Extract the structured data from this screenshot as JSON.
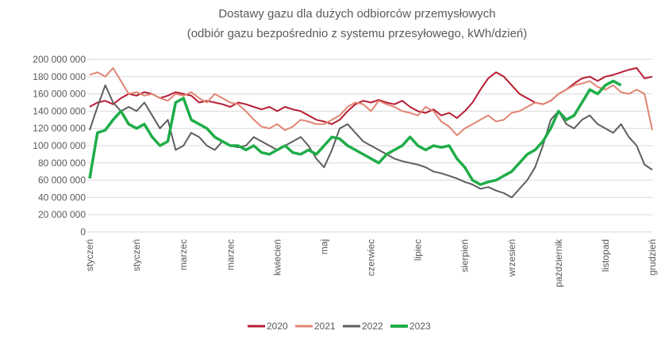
{
  "chart_data": {
    "type": "line",
    "title": "Dostawy gazu dla dużych odbiorców przemysłowych",
    "subtitle": "(odbiór gazu bezpośrednio z systemu przesyłowego, kWh/dzień)",
    "categories": [
      "styczeń",
      null,
      null,
      null,
      null,
      null,
      "styczeń",
      null,
      null,
      null,
      null,
      null,
      "marzec",
      null,
      null,
      null,
      null,
      null,
      "marzec",
      null,
      null,
      null,
      null,
      null,
      "kwiecień",
      null,
      null,
      null,
      null,
      null,
      "maj",
      null,
      null,
      null,
      null,
      null,
      "czerwiec",
      null,
      null,
      null,
      null,
      null,
      "lipiec",
      null,
      null,
      null,
      null,
      null,
      "sierpień",
      null,
      null,
      null,
      null,
      null,
      "wrzesień",
      null,
      null,
      null,
      null,
      null,
      "październik",
      null,
      null,
      null,
      null,
      null,
      "listopad",
      null,
      null,
      null,
      null,
      null,
      "grudzień"
    ],
    "ylim": [
      0,
      200000000
    ],
    "yticks": [
      0,
      {
        "value": 20000000,
        "label": "20 000 000"
      },
      {
        "value": 40000000,
        "label": "40 000 000"
      },
      {
        "value": 60000000,
        "label": "60 000 000"
      },
      {
        "value": 80000000,
        "label": "80 000 000"
      },
      {
        "value": 100000000,
        "label": "100 000 000"
      },
      {
        "value": 120000000,
        "label": "120 000 000"
      },
      {
        "value": 140000000,
        "label": "140 000 000"
      },
      {
        "value": 160000000,
        "label": "160 000 000"
      },
      {
        "value": 180000000,
        "label": "180 000 000"
      },
      {
        "value": 200000000,
        "label": "200 000 000"
      }
    ],
    "grid": true,
    "legend": "bottom",
    "series": [
      {
        "name": "2020",
        "color": "#b71c33",
        "values": [
          145000000,
          150000000,
          152000000,
          148000000,
          155000000,
          160000000,
          158000000,
          162000000,
          160000000,
          155000000,
          158000000,
          162000000,
          160000000,
          158000000,
          150000000,
          152000000,
          150000000,
          148000000,
          145000000,
          150000000,
          148000000,
          145000000,
          142000000,
          145000000,
          140000000,
          145000000,
          142000000,
          140000000,
          135000000,
          130000000,
          128000000,
          125000000,
          130000000,
          140000000,
          148000000,
          152000000,
          150000000,
          153000000,
          150000000,
          148000000,
          152000000,
          145000000,
          140000000,
          138000000,
          142000000,
          135000000,
          138000000,
          132000000,
          140000000,
          150000000,
          165000000,
          178000000,
          185000000,
          180000000,
          170000000,
          160000000,
          155000000,
          150000000,
          148000000,
          152000000,
          160000000,
          165000000,
          172000000,
          178000000,
          180000000,
          175000000,
          180000000,
          182000000,
          185000000,
          188000000,
          190000000,
          178000000,
          180000000
        ]
      },
      {
        "name": "2021",
        "color": "#e08573",
        "values": [
          182000000,
          185000000,
          180000000,
          190000000,
          175000000,
          160000000,
          162000000,
          158000000,
          160000000,
          155000000,
          152000000,
          160000000,
          158000000,
          162000000,
          155000000,
          150000000,
          160000000,
          155000000,
          150000000,
          148000000,
          140000000,
          130000000,
          122000000,
          120000000,
          125000000,
          118000000,
          122000000,
          130000000,
          128000000,
          125000000,
          125000000,
          130000000,
          135000000,
          145000000,
          150000000,
          148000000,
          140000000,
          152000000,
          148000000,
          145000000,
          140000000,
          138000000,
          135000000,
          145000000,
          140000000,
          128000000,
          122000000,
          112000000,
          120000000,
          125000000,
          130000000,
          135000000,
          128000000,
          130000000,
          138000000,
          140000000,
          145000000,
          150000000,
          148000000,
          152000000,
          160000000,
          165000000,
          170000000,
          172000000,
          175000000,
          168000000,
          165000000,
          170000000,
          162000000,
          160000000,
          165000000,
          160000000,
          118000000
        ]
      },
      {
        "name": "2022",
        "color": "#5e5e5e",
        "values": [
          118000000,
          145000000,
          170000000,
          150000000,
          140000000,
          145000000,
          140000000,
          150000000,
          135000000,
          120000000,
          130000000,
          95000000,
          100000000,
          115000000,
          110000000,
          100000000,
          95000000,
          105000000,
          100000000,
          98000000,
          100000000,
          110000000,
          105000000,
          100000000,
          95000000,
          100000000,
          105000000,
          110000000,
          100000000,
          85000000,
          75000000,
          95000000,
          120000000,
          125000000,
          115000000,
          105000000,
          100000000,
          95000000,
          90000000,
          85000000,
          82000000,
          80000000,
          78000000,
          75000000,
          70000000,
          68000000,
          65000000,
          62000000,
          58000000,
          55000000,
          50000000,
          52000000,
          48000000,
          45000000,
          40000000,
          50000000,
          60000000,
          75000000,
          100000000,
          130000000,
          140000000,
          125000000,
          120000000,
          130000000,
          135000000,
          125000000,
          120000000,
          115000000,
          125000000,
          110000000,
          100000000,
          78000000,
          72000000
        ]
      },
      {
        "name": "2023",
        "color": "#1fad48",
        "values": [
          62000000,
          115000000,
          118000000,
          130000000,
          140000000,
          125000000,
          120000000,
          125000000,
          110000000,
          100000000,
          105000000,
          150000000,
          155000000,
          130000000,
          125000000,
          120000000,
          110000000,
          105000000,
          100000000,
          100000000,
          95000000,
          100000000,
          92000000,
          90000000,
          95000000,
          100000000,
          92000000,
          90000000,
          95000000,
          90000000,
          100000000,
          110000000,
          108000000,
          100000000,
          95000000,
          90000000,
          85000000,
          80000000,
          90000000,
          95000000,
          100000000,
          110000000,
          100000000,
          95000000,
          100000000,
          98000000,
          100000000,
          85000000,
          75000000,
          60000000,
          55000000,
          58000000,
          60000000,
          65000000,
          70000000,
          80000000,
          90000000,
          95000000,
          105000000,
          120000000,
          140000000,
          130000000,
          135000000,
          150000000,
          165000000,
          160000000,
          170000000,
          175000000,
          170000000,
          null,
          null,
          null,
          null
        ]
      }
    ]
  }
}
